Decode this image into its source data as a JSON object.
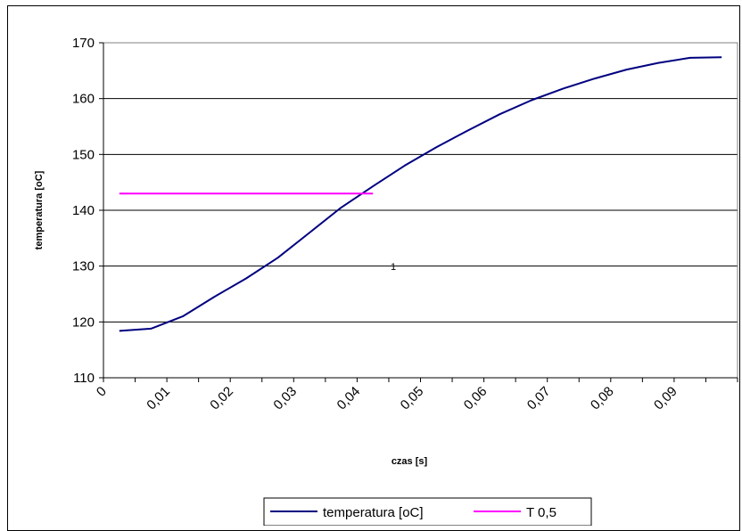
{
  "chart_data": {
    "type": "line",
    "title": "",
    "xlabel": "czas [s]",
    "ylabel": "temperatura [oC]",
    "xlim": [
      0,
      0.1
    ],
    "ylim": [
      110,
      170
    ],
    "yticks": [
      "110",
      "120",
      "130",
      "140",
      "150",
      "160",
      "170"
    ],
    "yticks_values": [
      110,
      120,
      130,
      140,
      150,
      160,
      170
    ],
    "xticks": [
      "0",
      "0,01",
      "0,02",
      "0,03",
      "0,04",
      "0,05",
      "0,06",
      "0,07",
      "0,08",
      "0,09"
    ],
    "xticks_values": [
      0,
      0.01,
      0.02,
      0.03,
      0.04,
      0.05,
      0.06,
      0.07,
      0.08,
      0.09
    ],
    "grid": "horizontal",
    "legend_position": "bottom",
    "series": [
      {
        "name": "temperatura [oC]",
        "color": "#000080",
        "x": [
          0.0025,
          0.0075,
          0.0125,
          0.0175,
          0.0225,
          0.0275,
          0.0325,
          0.0375,
          0.0425,
          0.0475,
          0.0525,
          0.0575,
          0.0625,
          0.0675,
          0.0725,
          0.0775,
          0.0825,
          0.0875,
          0.0925,
          0.0975
        ],
        "y": [
          118.4,
          118.8,
          121.0,
          124.5,
          127.8,
          131.5,
          136.0,
          140.5,
          144.3,
          148.0,
          151.3,
          154.3,
          157.2,
          159.7,
          161.8,
          163.6,
          165.2,
          166.4,
          167.3,
          167.4
        ]
      },
      {
        "name": "T 0,5",
        "color": "#ff00ff",
        "x": [
          0.0025,
          0.0425
        ],
        "y": [
          143,
          143
        ]
      }
    ],
    "annotations": [
      "1"
    ]
  }
}
